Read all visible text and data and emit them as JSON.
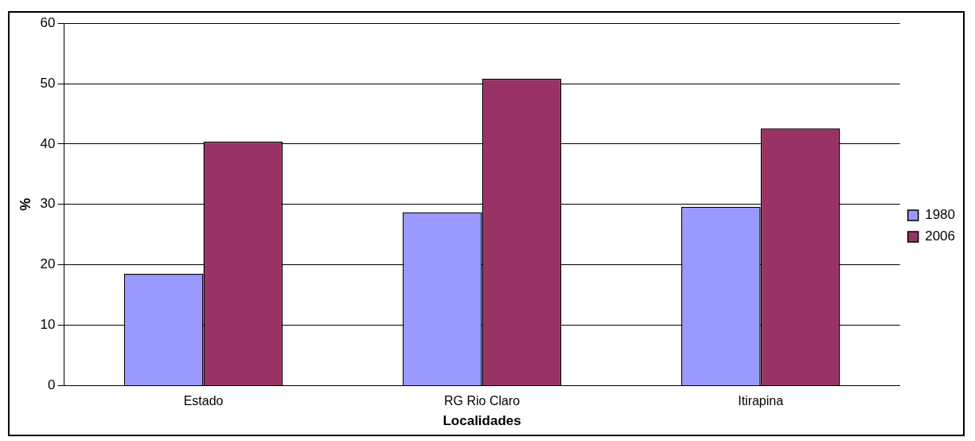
{
  "chart_data": {
    "type": "bar",
    "xlabel": "Localidades",
    "ylabel": "%",
    "categories": [
      "Estado",
      "RG Rio Claro",
      "Itirapina"
    ],
    "series": [
      {
        "name": "1980",
        "color": "#9999ff",
        "values": [
          18.5,
          28.7,
          29.6
        ]
      },
      {
        "name": "2006",
        "color": "#993366",
        "values": [
          40.4,
          50.8,
          42.6
        ]
      }
    ],
    "ylim": [
      0,
      60
    ],
    "yticks": [
      0,
      10,
      20,
      30,
      40,
      50,
      60
    ],
    "grid": "y",
    "legend": "right"
  }
}
